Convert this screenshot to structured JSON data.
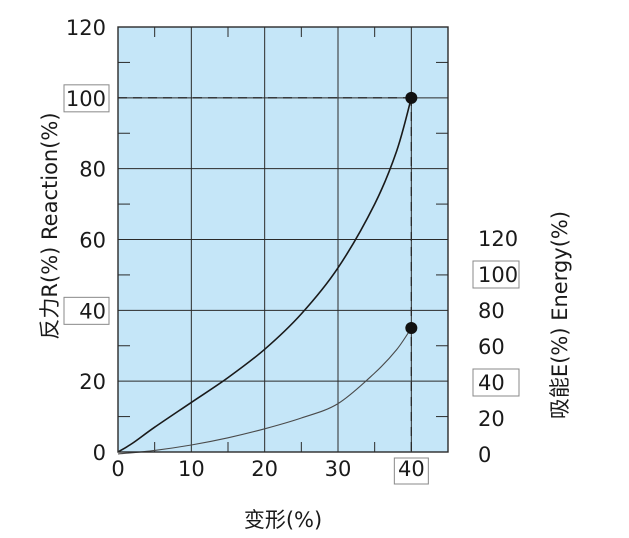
{
  "chart_data": {
    "type": "line",
    "xlabel": "变形(%)",
    "ylabel_left": "反力R(%) Reaction(%)",
    "ylabel_right": "吸能E(%) Energy(%)",
    "xlim": [
      0,
      45
    ],
    "ylim_left": [
      0,
      120
    ],
    "ylim_right": [
      0,
      120
    ],
    "x_ticks": [
      0,
      10,
      20,
      30,
      40
    ],
    "y_ticks_left": [
      0,
      20,
      40,
      60,
      80,
      100,
      120
    ],
    "y_ticks_right": [
      0,
      20,
      40,
      60,
      80,
      100,
      120
    ],
    "boxed_labels": [
      "100",
      "40"
    ],
    "grid": true,
    "plot_background": "#c5e6f8",
    "series": [
      {
        "axis": "left",
        "color": "#1a1a1a",
        "x": [
          0,
          2,
          5,
          10,
          15,
          20,
          25,
          30,
          35,
          38,
          40
        ],
        "y": [
          0,
          2.5,
          7,
          14,
          21,
          29,
          39,
          52,
          70,
          85,
          100
        ],
        "end_marker": true
      },
      {
        "axis": "right",
        "color": "#4a4a4a",
        "x": [
          0,
          5,
          10,
          15,
          20,
          25,
          30,
          35,
          38,
          40
        ],
        "y": [
          0,
          2,
          5,
          9,
          14,
          20,
          28,
          45,
          58,
          70
        ],
        "end_marker": true
      }
    ],
    "reference_lines": [
      {
        "axis": "left",
        "y": 100,
        "from_x": 0,
        "to_x": 40
      },
      {
        "axis": "x",
        "x": 40
      }
    ]
  }
}
